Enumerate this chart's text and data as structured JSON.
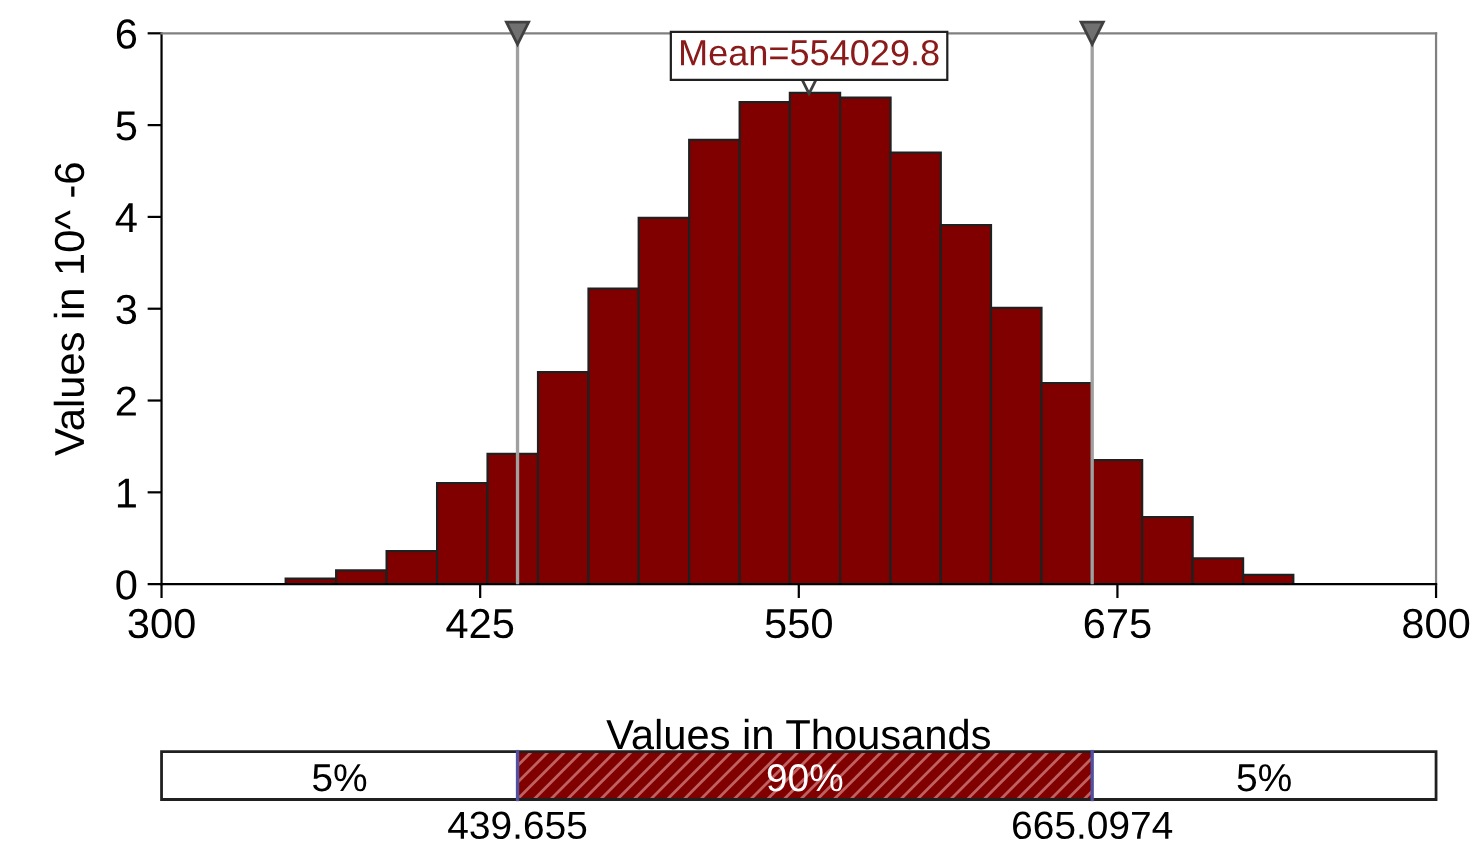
{
  "chart_data": {
    "type": "histogram",
    "xlabel": "Values in Thousands",
    "ylabel": "Values in 10^ -6",
    "bins": [
      348.7,
      368.5,
      388.3,
      408.1,
      427.9,
      447.7,
      467.5,
      487.2,
      507.0,
      526.8,
      546.5,
      566.2,
      586.0,
      605.7,
      625.4,
      645.2,
      665.0,
      684.7,
      704.5,
      724.3,
      744.0
    ],
    "values": [
      0.06,
      0.15,
      0.36,
      1.1,
      1.42,
      2.31,
      3.22,
      3.99,
      4.84,
      5.25,
      5.35,
      5.3,
      4.7,
      3.91,
      3.01,
      2.19,
      1.35,
      0.73,
      0.28,
      0.1
    ],
    "color": "#800000",
    "xlim": [
      300,
      800
    ],
    "xticks": [
      300,
      425,
      550,
      675,
      800
    ],
    "ylim": [
      0,
      6
    ],
    "yticks": [
      0,
      1,
      2,
      3,
      4,
      5,
      6
    ],
    "grid": false,
    "ref_lines": [
      {
        "axis": "x",
        "value": 439.655,
        "color": "#a0a0a0"
      },
      {
        "axis": "x",
        "value": 665.0974,
        "color": "#a0a0a0"
      }
    ],
    "annotations": [
      {
        "text": "Mean=554029.8",
        "x": 554.0298,
        "y": 5.45
      },
      "5%",
      "90%",
      "5%",
      "439.655",
      "665.0974"
    ]
  }
}
